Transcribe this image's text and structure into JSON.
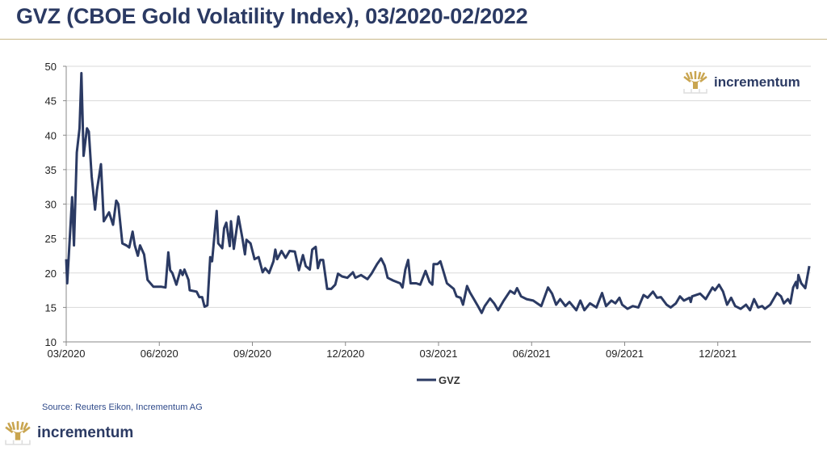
{
  "header": {
    "title": "GVZ (CBOE Gold Volatility Index), 03/2020-02/2022"
  },
  "brand": {
    "name": "incrementum",
    "accent": "#c9a550"
  },
  "source": "Source: Reuters Eikon, Incrementum AG",
  "chart_data": {
    "type": "line",
    "title": "GVZ (CBOE Gold Volatility Index), 03/2020-02/2022",
    "xlabel": "",
    "ylabel": "",
    "x_unit": "months since 03/2020",
    "xlim": [
      0,
      24
    ],
    "ylim": [
      10,
      50
    ],
    "yticks": [
      10,
      15,
      20,
      25,
      30,
      35,
      40,
      45,
      50
    ],
    "xticks": [
      {
        "value": 0,
        "label": "03/2020"
      },
      {
        "value": 3,
        "label": "06/2020"
      },
      {
        "value": 6,
        "label": "09/2020"
      },
      {
        "value": 9,
        "label": "12/2020"
      },
      {
        "value": 12,
        "label": "03/2021"
      },
      {
        "value": 15,
        "label": "06/2021"
      },
      {
        "value": 18,
        "label": "09/2021"
      },
      {
        "value": 21,
        "label": "12/2021"
      }
    ],
    "grid": true,
    "legend": {
      "position": "bottom-center",
      "entries": [
        "GVZ"
      ]
    },
    "series": [
      {
        "name": "GVZ",
        "color": "#2b3a63",
        "x": [
          0,
          0.03,
          0.19,
          0.25,
          0.34,
          0.43,
          0.49,
          0.56,
          0.67,
          0.73,
          0.82,
          0.93,
          0.99,
          1.12,
          1.21,
          1.38,
          1.51,
          1.61,
          1.68,
          1.81,
          1.94,
          2.03,
          2.14,
          2.21,
          2.31,
          2.38,
          2.51,
          2.62,
          2.81,
          3.07,
          3.2,
          3.29,
          3.35,
          3.42,
          3.55,
          3.68,
          3.75,
          3.81,
          3.94,
          3.98,
          4.2,
          4.29,
          4.38,
          4.46,
          4.55,
          4.64,
          4.7,
          4.85,
          4.9,
          5.03,
          5.09,
          5.16,
          5.27,
          5.31,
          5.4,
          5.55,
          5.68,
          5.76,
          5.81,
          5.94,
          6.07,
          6.2,
          6.33,
          6.41,
          6.54,
          6.68,
          6.74,
          6.8,
          6.94,
          7.07,
          7.2,
          7.37,
          7.5,
          7.63,
          7.72,
          7.85,
          7.93,
          8.04,
          8.11,
          8.19,
          8.28,
          8.41,
          8.54,
          8.67,
          8.76,
          8.89,
          9.06,
          9.24,
          9.32,
          9.5,
          9.71,
          9.84,
          10.02,
          10.15,
          10.26,
          10.36,
          10.54,
          10.76,
          10.84,
          10.93,
          11.02,
          11.1,
          11.28,
          11.41,
          11.58,
          11.71,
          11.8,
          11.84,
          11.97,
          12.06,
          12.14,
          12.27,
          12.49,
          12.58,
          12.71,
          12.79,
          12.92,
          13.01,
          13.14,
          13.27,
          13.39,
          13.49,
          13.66,
          13.79,
          13.92,
          14.1,
          14.31,
          14.45,
          14.53,
          14.66,
          14.84,
          15.05,
          15.31,
          15.53,
          15.66,
          15.79,
          15.92,
          16.09,
          16.22,
          16.44,
          16.57,
          16.7,
          16.88,
          17.09,
          17.27,
          17.4,
          17.57,
          17.7,
          17.83,
          17.92,
          18.09,
          18.26,
          18.44,
          18.61,
          18.74,
          18.91,
          19.04,
          19.17,
          19.35,
          19.48,
          19.65,
          19.78,
          19.91,
          20.09,
          20.13,
          20.17,
          20.43,
          20.61,
          20.83,
          20.91,
          21.04,
          21.17,
          21.3,
          21.43,
          21.56,
          21.74,
          21.91,
          22.04,
          22.17,
          22.3,
          22.43,
          22.52,
          22.69,
          22.82,
          22.91,
          23.04,
          23.13,
          23.26,
          23.34,
          23.43,
          23.52,
          23.56,
          23.6,
          23.69,
          23.82,
          23.95
        ],
        "values": [
          22,
          18.5,
          31,
          24,
          37.5,
          41,
          49,
          37,
          41,
          40.5,
          34,
          29.2,
          32,
          35.8,
          27.5,
          28.8,
          27,
          30.5,
          30,
          24.3,
          24,
          23.7,
          26,
          24,
          22.5,
          24,
          22.7,
          19,
          18,
          18,
          17.9,
          23,
          20.4,
          20,
          18.3,
          20.4,
          19.7,
          20.5,
          19,
          17.5,
          17.3,
          16.5,
          16.5,
          15.1,
          15.3,
          22.3,
          21.7,
          29,
          24.3,
          23.6,
          26.5,
          27.3,
          23.9,
          27.5,
          23.5,
          28.2,
          25,
          22.7,
          24.8,
          24.3,
          22,
          22.3,
          20.1,
          20.7,
          20,
          21.7,
          23.4,
          22,
          23.2,
          22.2,
          23.2,
          23.1,
          20.4,
          22.6,
          21,
          20.5,
          23.4,
          23.8,
          20.7,
          21.9,
          21.9,
          17.7,
          17.7,
          18.3,
          19.9,
          19.5,
          19.3,
          20.1,
          19.3,
          19.7,
          19.1,
          19.9,
          21.3,
          22.1,
          21.1,
          19.3,
          18.9,
          18.5,
          17.9,
          20.5,
          21.9,
          18.5,
          18.5,
          18.3,
          20.3,
          18.7,
          18.3,
          21.3,
          21.3,
          21.7,
          20.5,
          18.5,
          17.7,
          16.6,
          16.4,
          15.4,
          18.1,
          17.2,
          16.2,
          15.2,
          14.2,
          15.2,
          16.3,
          15.6,
          14.6,
          16,
          17.4,
          17,
          17.8,
          16.6,
          16.2,
          16,
          15.2,
          17.9,
          17,
          15.4,
          16.2,
          15.2,
          15.8,
          14.6,
          16,
          14.6,
          15.6,
          15,
          17.1,
          15.2,
          16,
          15.6,
          16.4,
          15.4,
          14.8,
          15.2,
          15,
          16.8,
          16.4,
          17.3,
          16.4,
          16.5,
          15.4,
          15,
          15.6,
          16.6,
          16,
          16.4,
          15.8,
          16.6,
          17,
          16.2,
          17.9,
          17.5,
          18.3,
          17.3,
          15.4,
          16.4,
          15.2,
          14.8,
          15.4,
          14.6,
          16.2,
          15,
          15.2,
          14.8,
          15.4,
          16.4,
          17.1,
          16.6,
          15.6,
          16.2,
          15.6,
          17.9,
          18.7,
          17.8,
          19.7,
          18.5,
          17.8,
          21
        ]
      }
    ]
  }
}
